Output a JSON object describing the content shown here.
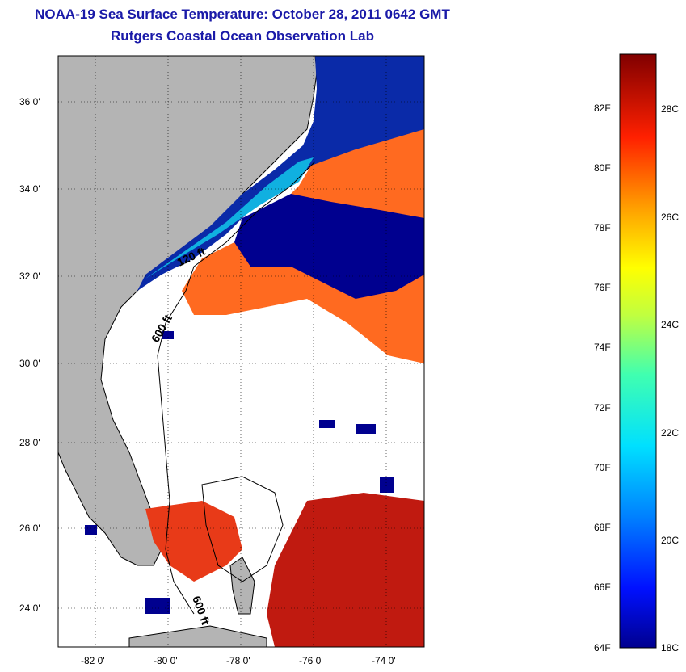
{
  "title_line1": "NOAA-19 Sea Surface Temperature:  October 28, 2011 0642 GMT",
  "title_line2": "Rutgers Coastal Ocean Observation Lab",
  "map": {
    "lat_ticks": [
      "36 0'",
      "34 0'",
      "32 0'",
      "30 0'",
      "28 0'",
      "26 0'",
      "24 0'"
    ],
    "lon_ticks": [
      "-82 0'",
      "-80 0'",
      "-78 0'",
      "-76 0'",
      "-74 0'"
    ],
    "contour_labels": [
      "120 ft",
      "600 ft",
      "600 ft"
    ]
  },
  "colorbar": {
    "f_labels": [
      "82F",
      "80F",
      "78F",
      "76F",
      "74F",
      "72F",
      "70F",
      "68F",
      "66F",
      "64F"
    ],
    "c_labels": [
      "28C",
      "26C",
      "24C",
      "22C",
      "20C",
      "18C"
    ],
    "range_c": [
      18,
      29.5
    ]
  },
  "colors": {
    "land": "#b4b4b4",
    "cold": "#00008f",
    "warm": "#ff6a00",
    "hot": "#c81400",
    "title": "#1a1aa8"
  }
}
